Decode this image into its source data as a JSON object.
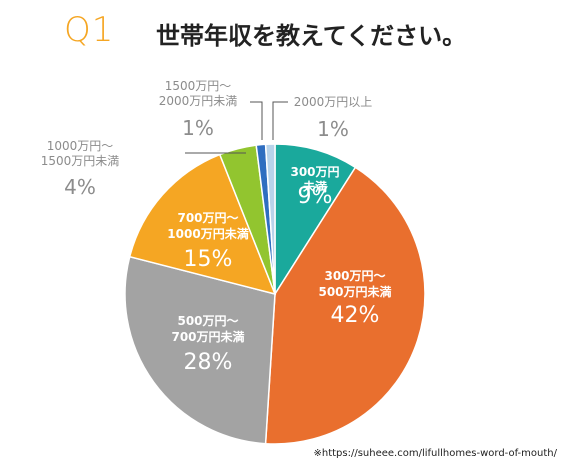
{
  "header": {
    "q_label": "Q1",
    "title": "世帯年収を教えてください。"
  },
  "source_note": "※https://suheee.com/lifullhomes-word-of-mouth/",
  "chart_data": {
    "type": "pie",
    "title": "世帯年収を教えてください。",
    "unit": "%",
    "slices": [
      {
        "label": [
          "300万円",
          "未満"
        ],
        "value": 9,
        "display": "9%",
        "color": "#1aa99c"
      },
      {
        "label": [
          "300万円～",
          "500万円未満"
        ],
        "value": 42,
        "display": "42%",
        "color": "#e96f2e"
      },
      {
        "label": [
          "500万円～",
          "700万円未満"
        ],
        "value": 28,
        "display": "28%",
        "color": "#a3a3a3"
      },
      {
        "label": [
          "700万円～",
          "1000万円未満"
        ],
        "value": 15,
        "display": "15%",
        "color": "#f5a623"
      },
      {
        "label": [
          "1000万円～",
          "1500万円未満"
        ],
        "value": 4,
        "display": "4%",
        "color": "#92c52f"
      },
      {
        "label": [
          "1500万円～",
          "2000万円未満"
        ],
        "value": 1,
        "display": "1%",
        "color": "#2f6ec0"
      },
      {
        "label": [
          "2000万円以上"
        ],
        "value": 1,
        "display": "1%",
        "color": "#b8d3ea"
      }
    ]
  }
}
